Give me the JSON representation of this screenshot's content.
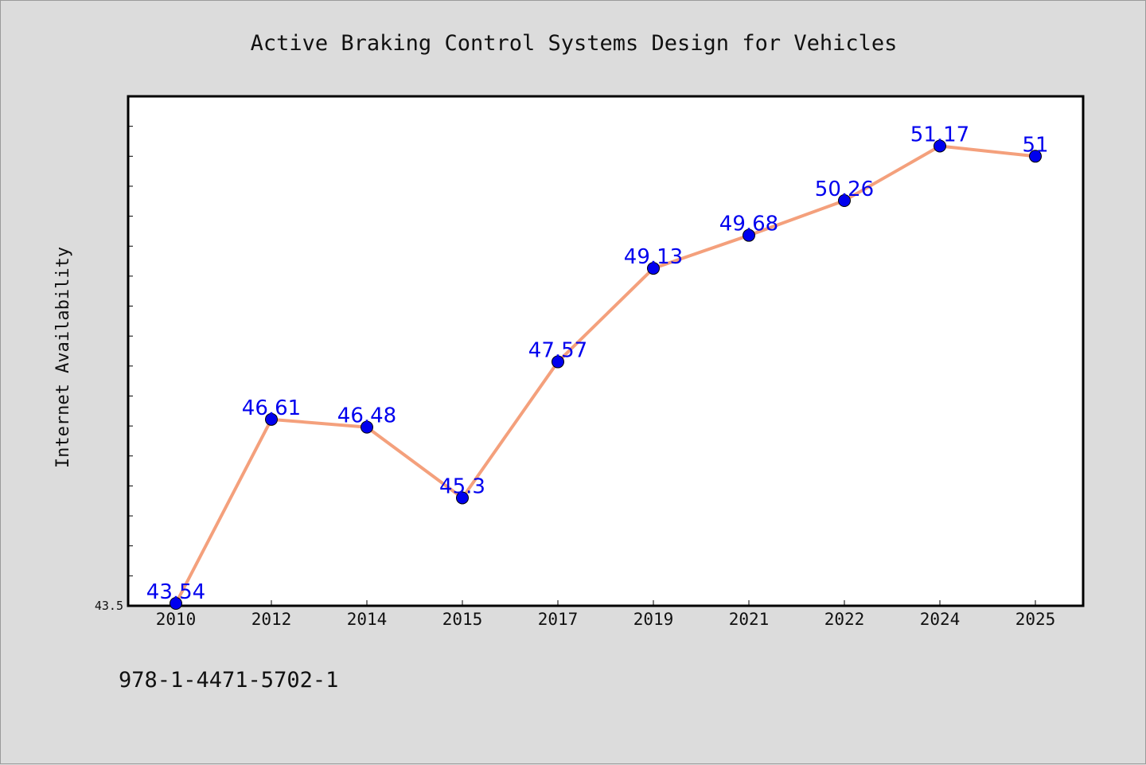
{
  "footer": {
    "isbn": "978-1-4471-5702-1"
  },
  "colors": {
    "background": "#dcdcdc",
    "plot_background": "#ffffff",
    "line": "#f4a07c",
    "marker": "#0000ee",
    "data_label": "#0000ee"
  },
  "chart_data": {
    "type": "line",
    "title": "Active Braking Control Systems Design for Vehicles",
    "xlabel": "",
    "ylabel": "Internet Availability",
    "categories": [
      "2010",
      "2012",
      "2014",
      "2015",
      "2017",
      "2019",
      "2021",
      "2022",
      "2024",
      "2025"
    ],
    "series": [
      {
        "values": [
          43.54,
          46.61,
          46.48,
          45.3,
          47.57,
          49.13,
          49.68,
          50.26,
          51.17,
          51
        ]
      }
    ],
    "data_labels": [
      "43.54",
      "46.61",
      "46.48",
      "45.3",
      "47.57",
      "49.13",
      "49.68",
      "50.26",
      "51.17",
      "51"
    ],
    "ylim": [
      43.5,
      52.0
    ],
    "ytick_labels": [
      "43.5"
    ],
    "grid": false,
    "legend": "none"
  }
}
